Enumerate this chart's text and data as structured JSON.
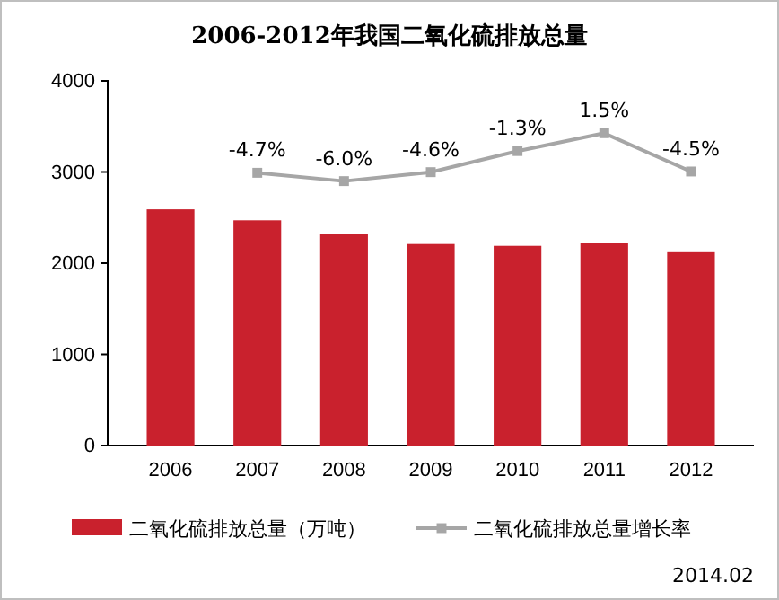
{
  "chart_data": {
    "type": "bar",
    "title": "2006-2012年我国二氧化硫排放总量",
    "categories": [
      "2006",
      "2007",
      "2008",
      "2009",
      "2010",
      "2011",
      "2012"
    ],
    "series": [
      {
        "name": "二氧化硫排放总量（万吨）",
        "color": "#c9212d",
        "values": [
          2590,
          2470,
          2320,
          2210,
          2190,
          2220,
          2120
        ]
      },
      {
        "name": "二氧化硫排放总量增长率",
        "type": "line",
        "axis": "y2",
        "color": "#a6a6a6",
        "marker": "square",
        "values": [
          null,
          -4.7,
          -6.0,
          -4.6,
          -1.3,
          1.5,
          -4.5
        ],
        "value_labels": [
          null,
          "-4.7%",
          "-6.0%",
          "-4.6%",
          "-1.3%",
          "1.5%",
          "-4.5%"
        ]
      }
    ],
    "ylim": [
      0,
      4000
    ],
    "yticks": [
      0,
      1000,
      2000,
      3000,
      4000
    ],
    "y2lim": [
      -47.4,
      9.7
    ],
    "legend": "bottom",
    "grid": false,
    "annotations": [
      "2014.02"
    ]
  }
}
